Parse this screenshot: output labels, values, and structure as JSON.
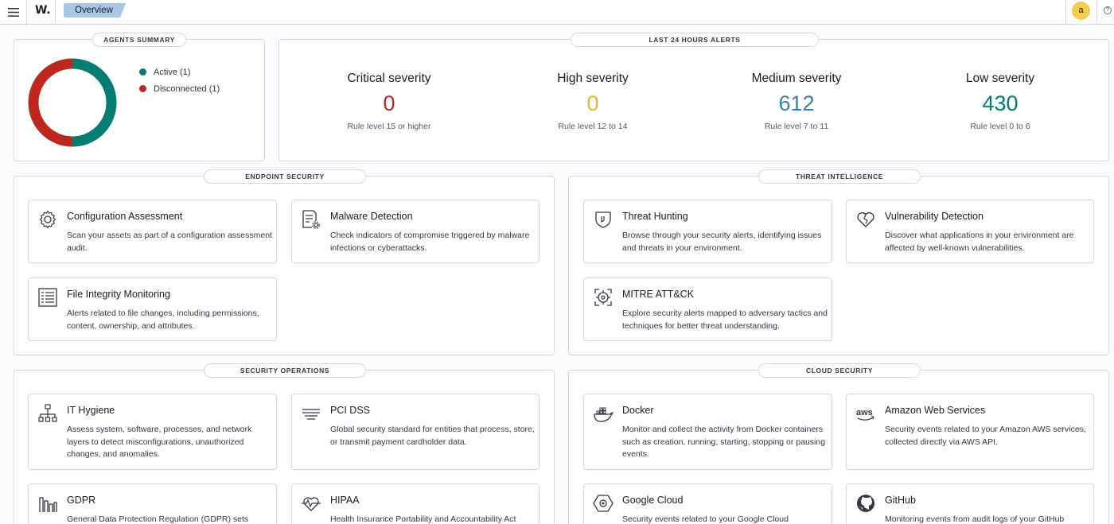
{
  "header": {
    "menu_icon": "hamburger-menu-icon",
    "logo": "W.",
    "breadcrumb": "Overview",
    "user_initial": "a",
    "help_icon": "help-icon",
    "help_glyph": "?"
  },
  "agents_summary": {
    "title": "AGENTS SUMMARY",
    "legend": [
      {
        "label": "Active (1)",
        "color": "#017d73"
      },
      {
        "label": "Disconnected (1)",
        "color": "#bd271e"
      }
    ],
    "chart_data": {
      "type": "pie",
      "categories": [
        "Active",
        "Disconnected"
      ],
      "values": [
        1,
        1
      ],
      "colors": [
        "#017d73",
        "#bd271e"
      ]
    }
  },
  "alerts": {
    "title": "LAST 24 HOURS ALERTS",
    "items": [
      {
        "label": "Critical severity",
        "value": "0",
        "desc": "Rule level 15 or higher",
        "color": "#bd271e"
      },
      {
        "label": "High severity",
        "value": "0",
        "desc": "Rule level 12 to 14",
        "color": "#e7b62b"
      },
      {
        "label": "Medium severity",
        "value": "612",
        "desc": "Rule level 7 to 11",
        "color": "#3b7fab"
      },
      {
        "label": "Low severity",
        "value": "430",
        "desc": "Rule level 0 to 6",
        "color": "#017d73"
      }
    ]
  },
  "sections": {
    "endpoint": {
      "title": "ENDPOINT SECURITY",
      "cards": [
        {
          "title": "Configuration Assessment",
          "desc": "Scan your assets as part of a configuration assessment audit.",
          "icon": "gear-icon"
        },
        {
          "title": "Malware Detection",
          "desc": "Check indicators of compromise triggered by malware infections or cyberattacks.",
          "icon": "document-gear-icon"
        },
        {
          "title": "File Integrity Monitoring",
          "desc": "Alerts related to file changes, including permissions, content, ownership, and attributes.",
          "icon": "list-document-icon"
        }
      ]
    },
    "threat": {
      "title": "THREAT INTELLIGENCE",
      "cards": [
        {
          "title": "Threat Hunting",
          "desc": "Browse through your security alerts, identifying issues and threats in your environment.",
          "icon": "shield-icon"
        },
        {
          "title": "Vulnerability Detection",
          "desc": "Discover what applications in your environment are affected by well-known vulnerabilities.",
          "icon": "broken-heart-icon"
        },
        {
          "title": "MITRE ATT&CK",
          "desc": "Explore security alerts mapped to adversary tactics and techniques for better threat understanding.",
          "icon": "target-icon"
        }
      ]
    },
    "secops": {
      "title": "SECURITY OPERATIONS",
      "cards": [
        {
          "title": "IT Hygiene",
          "desc": "Assess system, software, processes, and network layers to detect misconfigurations, unauthorized changes, and anomalies.",
          "icon": "network-tree-icon"
        },
        {
          "title": "PCI DSS",
          "desc": "Global security standard for entities that process, store, or transmit payment cardholder data.",
          "icon": "lines-icon"
        },
        {
          "title": "GDPR",
          "desc": "General Data Protection Regulation (GDPR) sets",
          "icon": "bar-building-icon"
        },
        {
          "title": "HIPAA",
          "desc": "Health Insurance Portability and Accountability Act",
          "icon": "heart-monitor-icon"
        }
      ]
    },
    "cloud": {
      "title": "CLOUD SECURITY",
      "cards": [
        {
          "title": "Docker",
          "desc": "Monitor and collect the activity from Docker containers such as creation, running, starting, stopping or pausing events.",
          "icon": "docker-icon"
        },
        {
          "title": "Amazon Web Services",
          "desc": "Security events related to your Amazon AWS services, collected directly via AWS API.",
          "icon": "aws-icon",
          "icon_text": "aws"
        },
        {
          "title": "Google Cloud",
          "desc": "Security events related to your Google Cloud",
          "icon": "google-cloud-icon"
        },
        {
          "title": "GitHub",
          "desc": "Monitoring events from audit logs of your GitHub",
          "icon": "github-icon"
        }
      ]
    }
  }
}
